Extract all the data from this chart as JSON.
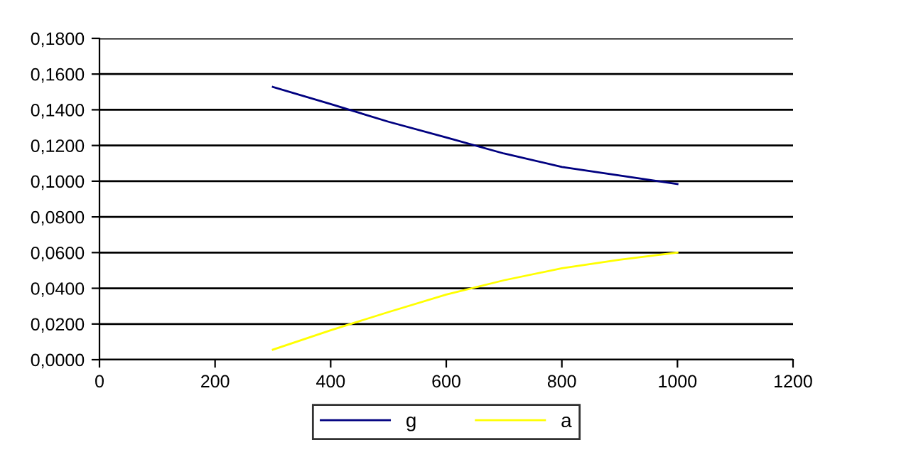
{
  "chart_data": {
    "type": "line",
    "x": [
      300,
      400,
      500,
      600,
      700,
      800,
      900,
      1000
    ],
    "series": [
      {
        "name": "g",
        "color": "#000080",
        "values": [
          0.1528,
          0.1432,
          0.1333,
          0.1245,
          0.1155,
          0.108,
          0.1032,
          0.0984
        ]
      },
      {
        "name": "a",
        "color": "#ffff00",
        "values": [
          0.0056,
          0.0165,
          0.0267,
          0.0365,
          0.0445,
          0.0512,
          0.056,
          0.06
        ]
      }
    ],
    "xlim": [
      0,
      1200
    ],
    "xticks": [
      0,
      200,
      400,
      600,
      800,
      1000,
      1200
    ],
    "ylim": [
      0,
      0.18
    ],
    "yticks": [
      {
        "value": 0,
        "label": "0,0000"
      },
      {
        "value": 0.02,
        "label": "0,0200"
      },
      {
        "value": 0.04,
        "label": "0,0400"
      },
      {
        "value": 0.06,
        "label": "0,0600"
      },
      {
        "value": 0.08,
        "label": "0,0800"
      },
      {
        "value": 0.1,
        "label": "0,1000"
      },
      {
        "value": 0.12,
        "label": "0,1200"
      },
      {
        "value": 0.14,
        "label": "0,1400"
      },
      {
        "value": 0.16,
        "label": "0,1600"
      },
      {
        "value": 0.18,
        "label": "0,1800"
      }
    ],
    "grid": "y",
    "legend": "bottom",
    "marker": "none",
    "line_style": "solid"
  }
}
